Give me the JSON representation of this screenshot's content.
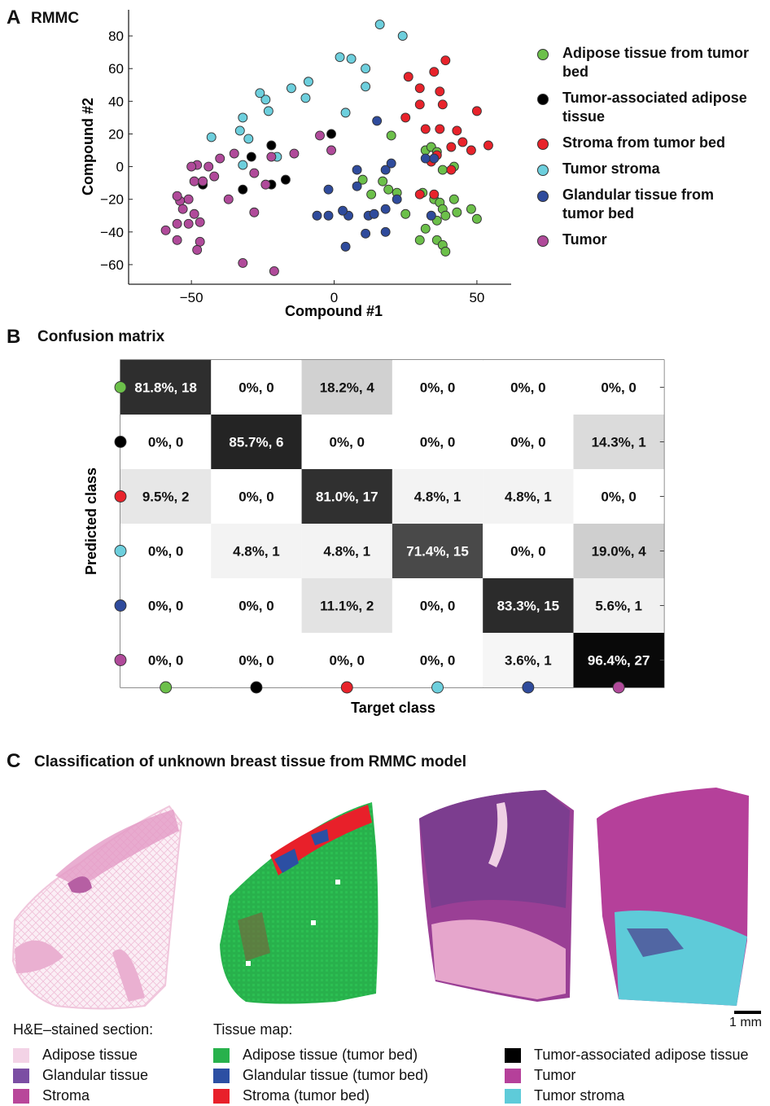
{
  "panel_a": {
    "letter": "A",
    "title": "RMMC",
    "xlabel": "Compound #1",
    "ylabel": "Compound #2"
  },
  "panel_b": {
    "letter": "B",
    "title": "Confusion matrix",
    "xlabel": "Target class",
    "ylabel": "Predicted class"
  },
  "panel_c": {
    "letter": "C",
    "title": "Classification of unknown breast tissue from RMMC model",
    "scale_bar": "1 mm",
    "he_header": "H&E–stained section:",
    "tm_header": "Tissue map:",
    "he_legend": [
      {
        "label": "Adipose tissue",
        "color": "#f3d3e6"
      },
      {
        "label": "Glandular tissue",
        "color": "#7b4ea3"
      },
      {
        "label": "Stroma",
        "color": "#b8479a"
      }
    ],
    "tm_legend_1": [
      {
        "label": "Adipose tissue (tumor bed)",
        "color": "#28b14c"
      },
      {
        "label": "Glandular tissue (tumor bed)",
        "color": "#2c4fa3"
      },
      {
        "label": "Stroma (tumor bed)",
        "color": "#e8202a"
      }
    ],
    "tm_legend_2": [
      {
        "label": "Tumor-associated adipose tissue",
        "color": "#000000"
      },
      {
        "label": "Tumor",
        "color": "#b5409a"
      },
      {
        "label": "Tumor stroma",
        "color": "#5ecbd9"
      }
    ]
  },
  "chart_data": [
    {
      "type": "scatter",
      "title": "RMMC",
      "xlabel": "Compound #1",
      "ylabel": "Compound #2",
      "xlim": [
        -72,
        62
      ],
      "ylim": [
        -72,
        96
      ],
      "xticks": [
        -50,
        0,
        50
      ],
      "yticks": [
        -60,
        -40,
        -20,
        0,
        20,
        40,
        60,
        80
      ],
      "xtick_labels": [
        "−50",
        "0",
        "50"
      ],
      "ytick_labels": [
        "−60",
        "−40",
        "−20",
        "0",
        "20",
        "40",
        "60",
        "80"
      ],
      "grid": false,
      "legend_position": "right",
      "series": [
        {
          "name": "Adipose tissue from tumor bed",
          "color": "#6cc04a",
          "points": [
            [
              20,
              19
            ],
            [
              32,
              10
            ],
            [
              34,
              12
            ],
            [
              38,
              -2
            ],
            [
              36,
              9
            ],
            [
              42,
              0
            ],
            [
              10,
              -8
            ],
            [
              13,
              -17
            ],
            [
              17,
              -9
            ],
            [
              19,
              -14
            ],
            [
              22,
              -16
            ],
            [
              25,
              -29
            ],
            [
              31,
              -16
            ],
            [
              35,
              -20
            ],
            [
              37,
              -22
            ],
            [
              42,
              -20
            ],
            [
              38,
              -26
            ],
            [
              43,
              -28
            ],
            [
              36,
              -33
            ],
            [
              39,
              -30
            ],
            [
              48,
              -26
            ],
            [
              50,
              -32
            ],
            [
              30,
              -45
            ],
            [
              36,
              -45
            ],
            [
              38,
              -48
            ],
            [
              39,
              -52
            ],
            [
              32,
              -38
            ]
          ]
        },
        {
          "name": "Tumor-associated adipose tissue",
          "color": "#000000",
          "points": [
            [
              -1,
              20
            ],
            [
              -22,
              13
            ],
            [
              -29,
              6
            ],
            [
              -32,
              -14
            ],
            [
              -17,
              -8
            ],
            [
              -22,
              -11
            ],
            [
              -46,
              -11
            ]
          ]
        },
        {
          "name": "Stroma from tumor bed",
          "color": "#e8232b",
          "points": [
            [
              26,
              55
            ],
            [
              30,
              48
            ],
            [
              35,
              58
            ],
            [
              37,
              46
            ],
            [
              39,
              65
            ],
            [
              30,
              38
            ],
            [
              38,
              38
            ],
            [
              25,
              30
            ],
            [
              32,
              23
            ],
            [
              37,
              23
            ],
            [
              43,
              22
            ],
            [
              45,
              15
            ],
            [
              48,
              10
            ],
            [
              50,
              34
            ],
            [
              54,
              13
            ],
            [
              41,
              12
            ],
            [
              36,
              7
            ],
            [
              34,
              3
            ],
            [
              30,
              -17
            ],
            [
              35,
              -17
            ],
            [
              41,
              -2
            ]
          ]
        },
        {
          "name": "Tumor stroma",
          "color": "#6dcfdd",
          "points": [
            [
              16,
              87
            ],
            [
              24,
              80
            ],
            [
              2,
              67
            ],
            [
              6,
              66
            ],
            [
              11,
              60
            ],
            [
              11,
              49
            ],
            [
              -9,
              52
            ],
            [
              -10,
              42
            ],
            [
              -15,
              48
            ],
            [
              -24,
              41
            ],
            [
              -26,
              45
            ],
            [
              -23,
              34
            ],
            [
              -32,
              30
            ],
            [
              -33,
              22
            ],
            [
              -30,
              17
            ],
            [
              -43,
              18
            ],
            [
              -32,
              1
            ],
            [
              -20,
              6
            ],
            [
              4,
              33
            ]
          ]
        },
        {
          "name": "Glandular tissue from tumor bed",
          "color": "#2f4b9c",
          "points": [
            [
              15,
              28
            ],
            [
              8,
              -2
            ],
            [
              18,
              -2
            ],
            [
              20,
              2
            ],
            [
              8,
              -12
            ],
            [
              5,
              -30
            ],
            [
              12,
              -30
            ],
            [
              14,
              -29
            ],
            [
              18,
              -26
            ],
            [
              22,
              -20
            ],
            [
              -6,
              -30
            ],
            [
              -2,
              -30
            ],
            [
              -2,
              -14
            ],
            [
              3,
              -27
            ],
            [
              11,
              -41
            ],
            [
              18,
              -40
            ],
            [
              4,
              -49
            ],
            [
              34,
              -30
            ],
            [
              32,
              5
            ],
            [
              35,
              5
            ]
          ]
        },
        {
          "name": "Tumor",
          "color": "#b04a9a",
          "points": [
            [
              -5,
              19
            ],
            [
              -1,
              10
            ],
            [
              -14,
              8
            ],
            [
              -22,
              6
            ],
            [
              -24,
              -11
            ],
            [
              -28,
              -4
            ],
            [
              -37,
              -20
            ],
            [
              -35,
              8
            ],
            [
              -40,
              5
            ],
            [
              -44,
              0
            ],
            [
              -42,
              -6
            ],
            [
              -48,
              1
            ],
            [
              -50,
              0
            ],
            [
              -49,
              -9
            ],
            [
              -46,
              -9
            ],
            [
              -51,
              -20
            ],
            [
              -54,
              -21
            ],
            [
              -55,
              -18
            ],
            [
              -53,
              -26
            ],
            [
              -49,
              -29
            ],
            [
              -51,
              -35
            ],
            [
              -55,
              -35
            ],
            [
              -47,
              -34
            ],
            [
              -47,
              -46
            ],
            [
              -48,
              -51
            ],
            [
              -55,
              -45
            ],
            [
              -59,
              -39
            ],
            [
              -28,
              -28
            ],
            [
              -32,
              -59
            ],
            [
              -21,
              -64
            ]
          ]
        }
      ]
    },
    {
      "type": "heatmap",
      "title": "Confusion matrix",
      "xlabel": "Target class",
      "ylabel": "Predicted class",
      "class_colors": [
        "#6cc04a",
        "#000000",
        "#e8232b",
        "#6dcfdd",
        "#2f4b9c",
        "#b04a9a"
      ],
      "rows": [
        {
          "labels": [
            "81.8%, 18",
            "0%, 0",
            "18.2%, 4",
            "0%, 0",
            "0%, 0",
            "0%, 0"
          ],
          "values": [
            81.8,
            0,
            18.2,
            0,
            0,
            0
          ]
        },
        {
          "labels": [
            "0%, 0",
            "85.7%, 6",
            "0%, 0",
            "0%, 0",
            "0%, 0",
            "14.3%, 1"
          ],
          "values": [
            0,
            85.7,
            0,
            0,
            0,
            14.3
          ]
        },
        {
          "labels": [
            "9.5%, 2",
            "0%, 0",
            "81.0%, 17",
            "4.8%, 1",
            "4.8%, 1",
            "0%, 0"
          ],
          "values": [
            9.5,
            0,
            81.0,
            4.8,
            4.8,
            0
          ]
        },
        {
          "labels": [
            "0%, 0",
            "4.8%, 1",
            "4.8%, 1",
            "71.4%, 15",
            "0%, 0",
            "19.0%, 4"
          ],
          "values": [
            0,
            4.8,
            4.8,
            71.4,
            0,
            19.0
          ]
        },
        {
          "labels": [
            "0%, 0",
            "0%, 0",
            "11.1%, 2",
            "0%, 0",
            "83.3%, 15",
            "5.6%, 1"
          ],
          "values": [
            0,
            0,
            11.1,
            0,
            83.3,
            5.6
          ]
        },
        {
          "labels": [
            "0%, 0",
            "0%, 0",
            "0%, 0",
            "0%, 0",
            "3.6%, 1",
            "96.4%, 27"
          ],
          "values": [
            0,
            0,
            0,
            0,
            3.6,
            96.4
          ]
        }
      ]
    }
  ]
}
